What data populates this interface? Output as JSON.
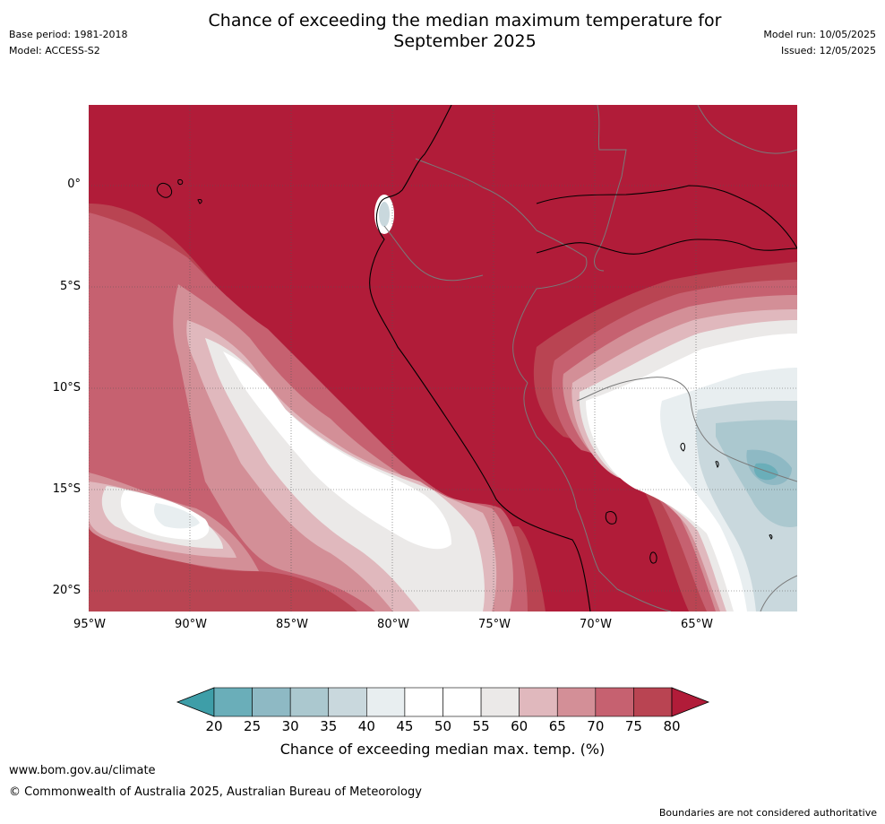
{
  "title": {
    "line1": "Chance of exceeding the median maximum temperature for",
    "line2": "September 2025"
  },
  "meta_left": {
    "base_period": "Base period: 1981-2018",
    "model": "Model: ACCESS-S2"
  },
  "meta_right": {
    "model_run": "Model run: 10/05/2025",
    "issued": "Issued: 12/05/2025"
  },
  "map": {
    "lat_labels": [
      "0°",
      "5°S",
      "10°S",
      "15°S",
      "20°S"
    ],
    "lon_labels": [
      "95°W",
      "90°W",
      "85°W",
      "80°W",
      "75°W",
      "70°W",
      "65°W"
    ]
  },
  "colorbar": {
    "ticks": [
      "20",
      "25",
      "30",
      "35",
      "40",
      "45",
      "50",
      "55",
      "60",
      "65",
      "70",
      "75",
      "80"
    ],
    "colors": [
      "#3e9ea8",
      "#6aaeb9",
      "#8eb9c4",
      "#abc8cf",
      "#c9d8dd",
      "#e8eef0",
      "#ffffff",
      "#ffffff",
      "#ebe9e8",
      "#e0b8bd",
      "#d38f97",
      "#c66170",
      "#b94452",
      "#b11c39"
    ],
    "label": "Chance of exceeding median max. temp. (%)"
  },
  "footer": {
    "url": "www.bom.gov.au/climate",
    "copyright": "© Commonwealth of Australia 2025, Australian Bureau of Meteorology",
    "disclaimer": "Boundaries are not considered authoritative"
  }
}
